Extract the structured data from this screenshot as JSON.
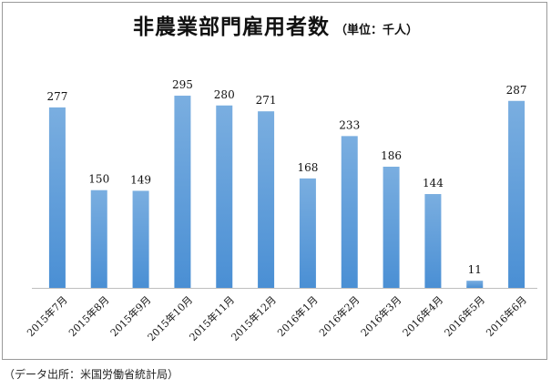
{
  "chart_data": {
    "type": "bar",
    "title": "非農業部門雇用者数",
    "unit_note": "（単位：千人）",
    "categories": [
      "2015年7月",
      "2015年8月",
      "2015年9月",
      "2015年10月",
      "2015年11月",
      "2015年12月",
      "2016年1月",
      "2016年2月",
      "2016年3月",
      "2016年4月",
      "2016年5月",
      "2016年6月"
    ],
    "values": [
      277,
      150,
      149,
      295,
      280,
      271,
      168,
      233,
      186,
      144,
      11,
      287
    ],
    "ylim": [
      0,
      330
    ],
    "grid": false,
    "legend": "none",
    "bar_color_top": "#7aaee0",
    "bar_color_bottom": "#4a8fd4"
  },
  "source_note": "（データ出所：米国労働省統計局）"
}
